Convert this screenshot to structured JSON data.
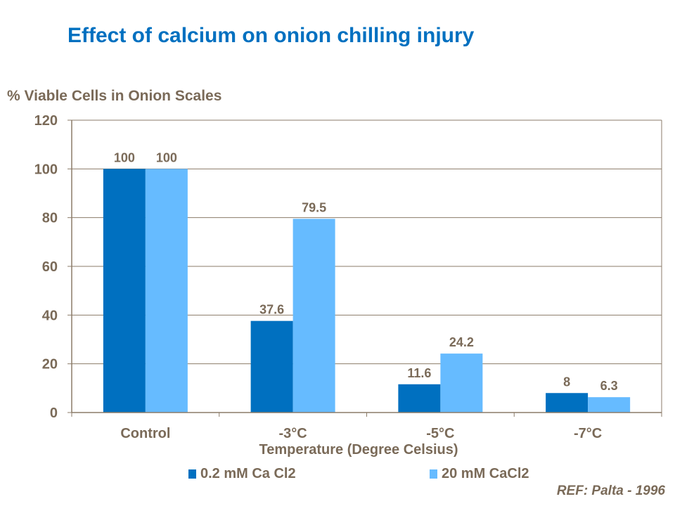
{
  "chart_data": {
    "type": "bar",
    "title": "Effect of calcium on onion chilling injury",
    "ylabel": "% Viable Cells in Onion Scales",
    "xlabel": "Temperature (Degree Celsius)",
    "categories": [
      "Control",
      "-3°C",
      "-5°C",
      "-7°C"
    ],
    "series": [
      {
        "name": "0.2 mM Ca Cl2",
        "values": [
          100,
          37.6,
          11.6,
          8
        ],
        "labels": [
          "100",
          "37.6",
          "11.6",
          "8"
        ],
        "color": "#0070C0"
      },
      {
        "name": "20 mM CaCl2",
        "values": [
          100,
          79.5,
          24.2,
          6.3
        ],
        "labels": [
          "100",
          "79.5",
          "24.2",
          "6.3"
        ],
        "color": "#66BBFF"
      }
    ],
    "ylim": [
      0,
      120
    ],
    "yticks": [
      "0",
      "20",
      "40",
      "60",
      "80",
      "100",
      "120"
    ],
    "grid": true,
    "legend": "bottom",
    "annotation": "REF: Palta - 1996"
  }
}
